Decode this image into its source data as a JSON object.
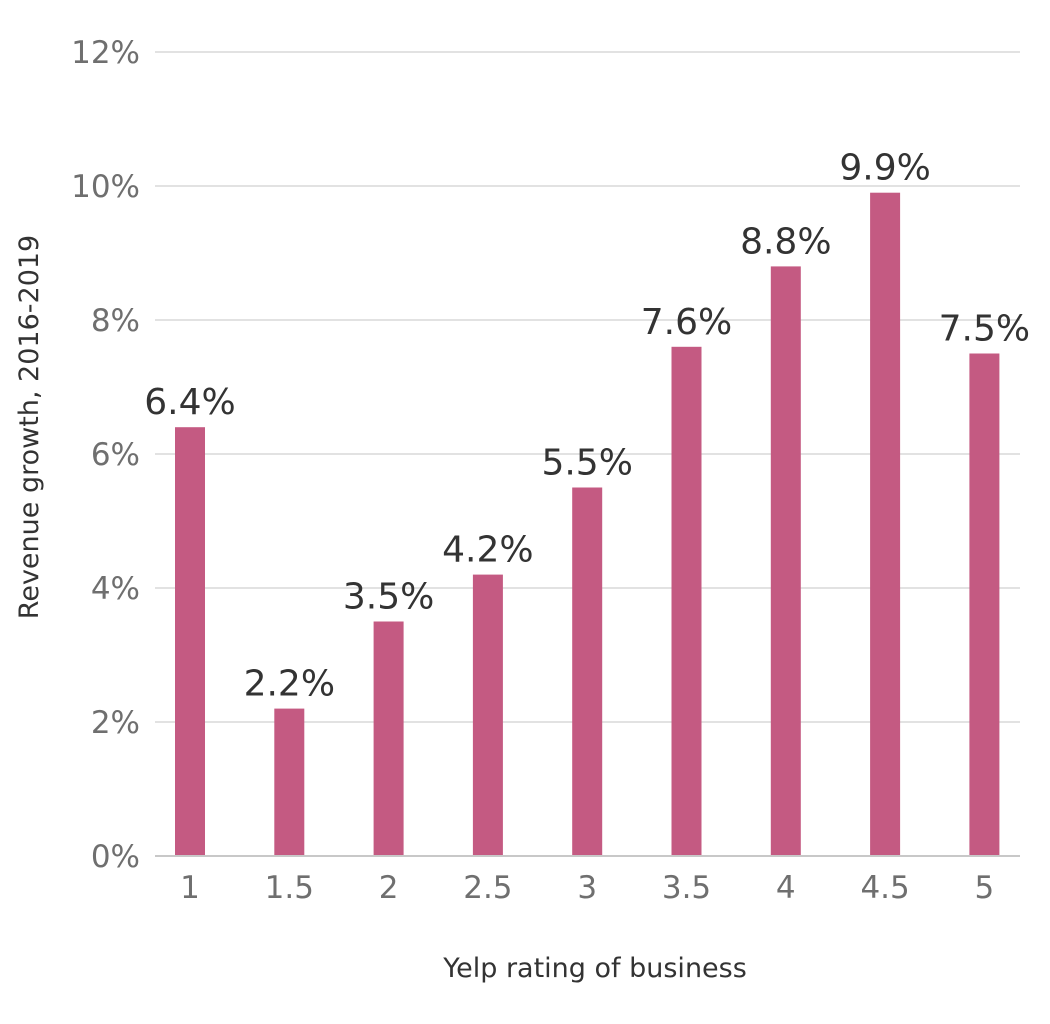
{
  "chart_data": {
    "type": "bar",
    "title": "",
    "xlabel": "Yelp rating of business",
    "ylabel": "Revenue growth, 2016-2019",
    "categories": [
      "1",
      "1.5",
      "2",
      "2.5",
      "3",
      "3.5",
      "4",
      "4.5",
      "5"
    ],
    "values": [
      6.4,
      2.2,
      3.5,
      4.2,
      5.5,
      7.6,
      8.8,
      9.9,
      7.5
    ],
    "value_labels": [
      "6.4%",
      "2.2%",
      "3.5%",
      "4.2%",
      "5.5%",
      "7.6%",
      "8.8%",
      "9.9%",
      "7.5%"
    ],
    "ylim": [
      0,
      12
    ],
    "y_ticks": [
      0,
      2,
      4,
      6,
      8,
      10,
      12
    ],
    "y_tick_labels": [
      "0%",
      "2%",
      "4%",
      "6%",
      "8%",
      "10%",
      "12%"
    ],
    "grid": true,
    "legend": "none",
    "colors": {
      "bar": "#c45a82",
      "grid": "#d9d9d9",
      "tick_text": "#6f6f6f",
      "label_text": "#333333"
    }
  }
}
